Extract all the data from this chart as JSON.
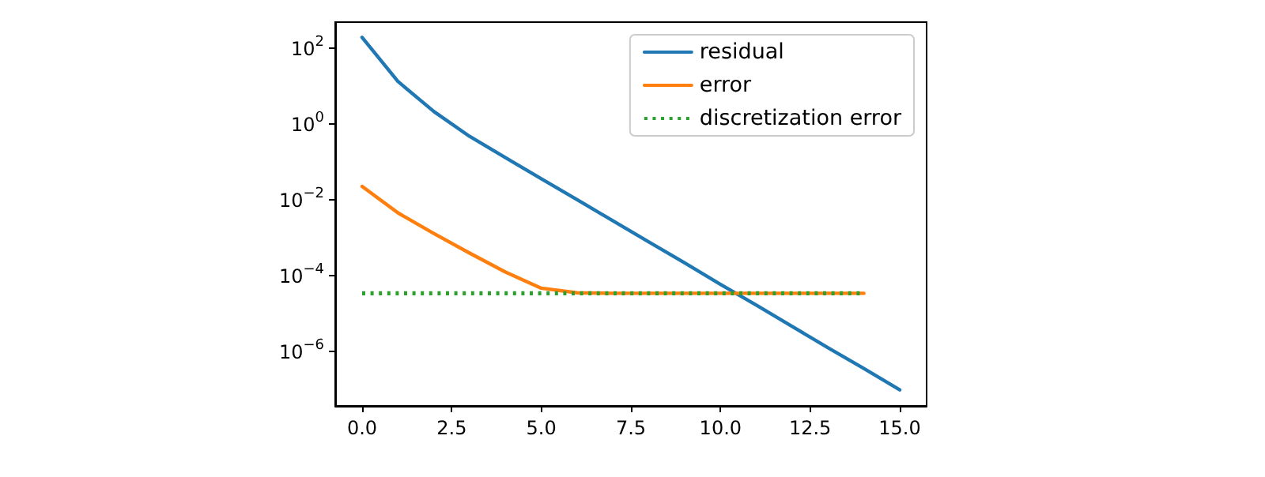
{
  "chart_data": {
    "type": "line",
    "x": [
      0,
      1,
      2,
      3,
      4,
      5,
      6,
      7,
      8,
      9,
      10,
      11,
      12,
      13,
      14,
      15
    ],
    "series": [
      {
        "name": "residual",
        "color": "#1f77b4",
        "values": [
          190,
          13,
          2.1,
          0.46,
          0.126,
          0.035,
          0.0098,
          0.0027,
          0.00075,
          0.00021,
          5.7e-05,
          1.6e-05,
          4.4e-06,
          1.2e-06,
          3.4e-07,
          9.3e-08
        ]
      },
      {
        "name": "error",
        "color": "#ff7f0e",
        "values": [
          0.022,
          0.0044,
          0.00126,
          0.00038,
          0.00012,
          4.5e-05,
          3.4e-05,
          3.3e-05,
          3.3e-05,
          3.3e-05,
          3.3e-05,
          3.3e-05,
          3.3e-05,
          3.3e-05,
          3.3e-05,
          null
        ]
      },
      {
        "name": "discretization error",
        "color": "#2ca02c",
        "line_style": "dotted",
        "values": [
          3.3e-05,
          3.3e-05,
          3.3e-05,
          3.3e-05,
          3.3e-05,
          3.3e-05,
          3.3e-05,
          3.3e-05,
          3.3e-05,
          3.3e-05,
          3.3e-05,
          3.3e-05,
          3.3e-05,
          3.3e-05,
          3.3e-05,
          null
        ]
      }
    ],
    "log": "y",
    "marker": "none",
    "line_style": "solid",
    "grid": false,
    "legend": "top right",
    "xlim": [
      -0.75,
      15.75
    ],
    "xticks": [
      {
        "value": 0,
        "label": "0.0"
      },
      2.5,
      {
        "value": 5,
        "label": "5.0"
      },
      7.5,
      {
        "value": 10,
        "label": "10.0"
      },
      12.5,
      {
        "value": 15,
        "label": "15.0"
      }
    ],
    "ylim": [
      3.5e-08,
      480
    ],
    "yticks": [
      {
        "value": 100,
        "label": "10$^{2}$"
      },
      {
        "value": 1,
        "label": "10$^{0}$"
      },
      {
        "value": 0.01,
        "label": "10$^{−2}$"
      },
      {
        "value": 0.0001,
        "label": "10$^{−4}$"
      },
      {
        "value": 1e-06,
        "label": "10$^{−6}$"
      }
    ]
  }
}
